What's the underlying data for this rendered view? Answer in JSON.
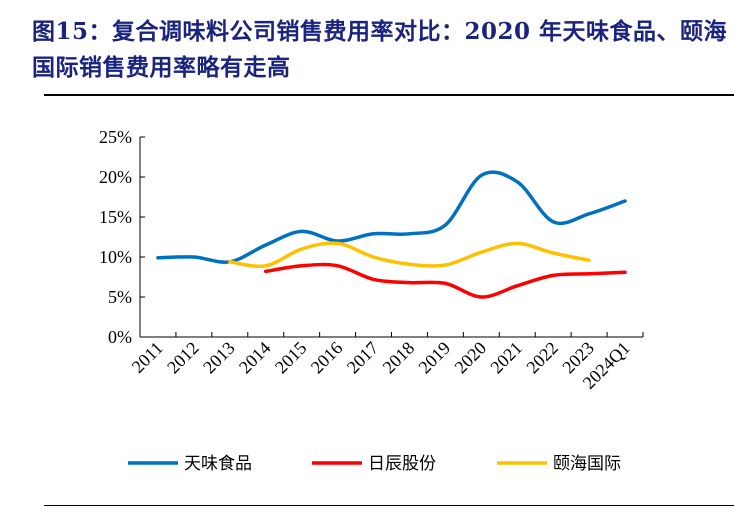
{
  "title": "图15：复合调味料公司销售费用率对比：2020 年天味食品、颐海国际销售费用率略有走高",
  "chart_data": {
    "type": "line",
    "title": "",
    "xlabel": "",
    "ylabel": "",
    "categories": [
      "2011",
      "2012",
      "2013",
      "2014",
      "2015",
      "2016",
      "2017",
      "2018",
      "2019",
      "2020",
      "2021",
      "2022",
      "2023",
      "2024Q1"
    ],
    "ylim": [
      0,
      25
    ],
    "yticks": [
      "0%",
      "5%",
      "10%",
      "15%",
      "20%",
      "25%"
    ],
    "ytick_values": [
      0,
      5,
      10,
      15,
      20,
      25
    ],
    "grid": false,
    "smooth": true,
    "legend_position": "bottom",
    "series": [
      {
        "name": "天味食品",
        "color": "#0070C0",
        "values": [
          9.9,
          10.0,
          9.4,
          11.5,
          13.2,
          12.0,
          12.9,
          12.9,
          14.0,
          20.2,
          19.4,
          14.4,
          15.4,
          17.0
        ]
      },
      {
        "name": "日辰股份",
        "color": "#FF0000",
        "values": [
          null,
          null,
          null,
          8.2,
          8.9,
          8.9,
          7.2,
          6.8,
          6.7,
          5.0,
          6.4,
          7.7,
          7.9,
          8.1
        ]
      },
      {
        "name": "颐海国际",
        "color": "#FFC000",
        "values": [
          null,
          null,
          9.4,
          8.9,
          11.0,
          11.7,
          10.0,
          9.1,
          9.0,
          10.6,
          11.7,
          10.5,
          9.6,
          null
        ]
      }
    ]
  }
}
